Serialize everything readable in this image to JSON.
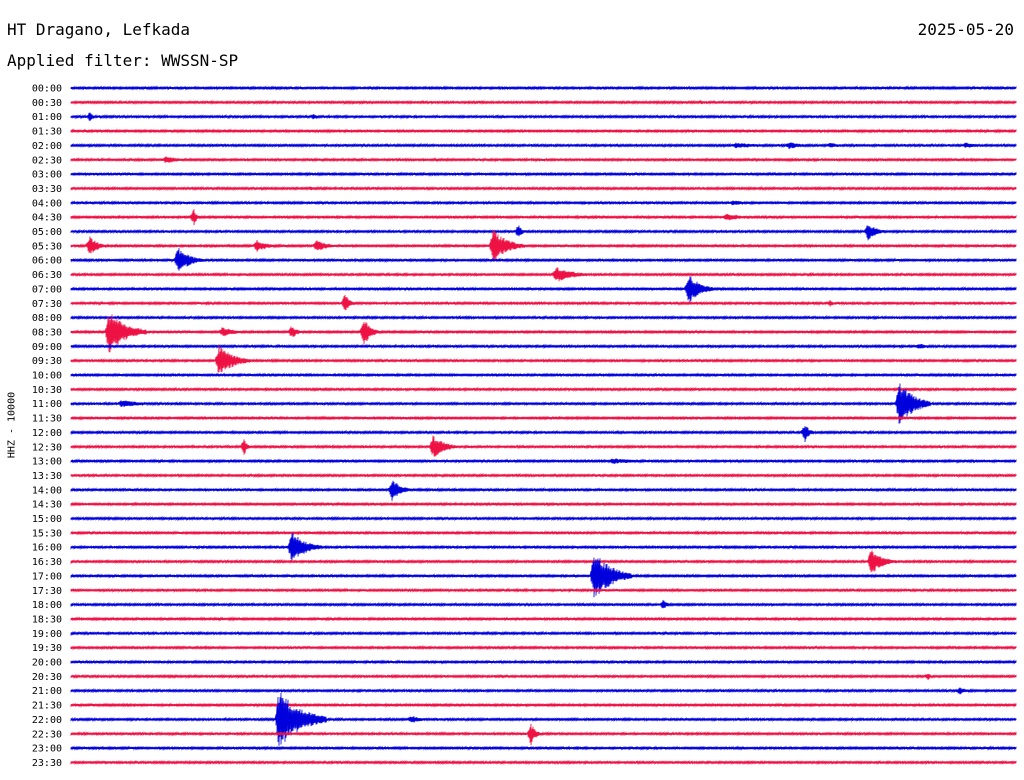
{
  "header": {
    "station": "HT Dragano, Lefkada",
    "date": "2025-05-20",
    "filter": "Applied filter: WWSSN-SP"
  },
  "chart_data": {
    "type": "line",
    "title": "HT Dragano, Lefkada",
    "subtitle": "Applied filter: WWSSN-SP",
    "ylabel": "HHZ - 10000",
    "time_labels": [
      "00:00",
      "00:30",
      "01:00",
      "01:30",
      "02:00",
      "02:30",
      "03:00",
      "03:30",
      "04:00",
      "04:30",
      "05:00",
      "05:30",
      "06:00",
      "06:30",
      "07:00",
      "07:30",
      "08:00",
      "08:30",
      "09:00",
      "09:30",
      "10:00",
      "10:30",
      "11:00",
      "11:30",
      "12:00",
      "12:30",
      "13:00",
      "13:30",
      "14:00",
      "14:30",
      "15:00",
      "15:30",
      "16:00",
      "16:30",
      "17:00",
      "17:30",
      "18:00",
      "18:30",
      "19:00",
      "19:30",
      "20:00",
      "20:30",
      "21:00",
      "21:30",
      "22:00",
      "22:30",
      "23:00",
      "23:30"
    ],
    "trace_colors": [
      "#0000dd",
      "#ee1144"
    ],
    "grid": false,
    "x_span_minutes": 30,
    "events": [
      {
        "trace": "00:30",
        "minute": 20.0,
        "amp": 2,
        "dur": 0.6
      },
      {
        "trace": "01:00",
        "minute": 0.6,
        "amp": 5,
        "dur": 0.2
      },
      {
        "trace": "01:00",
        "minute": 7.7,
        "amp": 3,
        "dur": 0.3
      },
      {
        "trace": "02:00",
        "minute": 21.1,
        "amp": 3,
        "dur": 2.0
      },
      {
        "trace": "02:00",
        "minute": 22.8,
        "amp": 4,
        "dur": 0.8
      },
      {
        "trace": "02:00",
        "minute": 24.1,
        "amp": 3,
        "dur": 0.8
      },
      {
        "trace": "02:00",
        "minute": 28.4,
        "amp": 3,
        "dur": 1.0
      },
      {
        "trace": "02:30",
        "minute": 3.0,
        "amp": 4,
        "dur": 1.0
      },
      {
        "trace": "03:30",
        "minute": 7.6,
        "amp": 2,
        "dur": 0.8
      },
      {
        "trace": "04:00",
        "minute": 21.0,
        "amp": 3,
        "dur": 1.0
      },
      {
        "trace": "04:30",
        "minute": 3.9,
        "amp": 9,
        "dur": 0.2
      },
      {
        "trace": "04:30",
        "minute": 20.8,
        "amp": 4,
        "dur": 1.2
      },
      {
        "trace": "05:00",
        "minute": 14.2,
        "amp": 7,
        "dur": 0.3
      },
      {
        "trace": "05:00",
        "minute": 25.3,
        "amp": 9,
        "dur": 0.6
      },
      {
        "trace": "05:30",
        "minute": 0.6,
        "amp": 11,
        "dur": 0.5
      },
      {
        "trace": "05:30",
        "minute": 5.9,
        "amp": 6,
        "dur": 0.8
      },
      {
        "trace": "05:30",
        "minute": 7.8,
        "amp": 6,
        "dur": 0.8
      },
      {
        "trace": "05:30",
        "minute": 13.4,
        "amp": 17,
        "dur": 1.0
      },
      {
        "trace": "06:00",
        "minute": 3.4,
        "amp": 14,
        "dur": 0.8
      },
      {
        "trace": "06:30",
        "minute": 15.4,
        "amp": 8,
        "dur": 1.2
      },
      {
        "trace": "07:00",
        "minute": 19.6,
        "amp": 16,
        "dur": 0.8
      },
      {
        "trace": "07:30",
        "minute": 8.7,
        "amp": 10,
        "dur": 0.3
      },
      {
        "trace": "07:30",
        "minute": 24.1,
        "amp": 4,
        "dur": 0.2
      },
      {
        "trace": "08:30",
        "minute": 1.2,
        "amp": 22,
        "dur": 1.2
      },
      {
        "trace": "08:30",
        "minute": 4.8,
        "amp": 5,
        "dur": 1.0
      },
      {
        "trace": "08:30",
        "minute": 7.0,
        "amp": 7,
        "dur": 0.4
      },
      {
        "trace": "08:30",
        "minute": 9.3,
        "amp": 14,
        "dur": 0.5
      },
      {
        "trace": "09:00",
        "minute": 26.9,
        "amp": 3,
        "dur": 0.8
      },
      {
        "trace": "09:30",
        "minute": 4.7,
        "amp": 16,
        "dur": 1.0
      },
      {
        "trace": "11:00",
        "minute": 1.6,
        "amp": 4,
        "dur": 1.5
      },
      {
        "trace": "11:00",
        "minute": 26.3,
        "amp": 24,
        "dur": 1.0
      },
      {
        "trace": "12:00",
        "minute": 23.3,
        "amp": 10,
        "dur": 0.3
      },
      {
        "trace": "12:30",
        "minute": 5.5,
        "amp": 9,
        "dur": 0.2
      },
      {
        "trace": "12:30",
        "minute": 11.5,
        "amp": 12,
        "dur": 0.8
      },
      {
        "trace": "13:00",
        "minute": 17.2,
        "amp": 3,
        "dur": 2.0
      },
      {
        "trace": "14:00",
        "minute": 10.2,
        "amp": 12,
        "dur": 0.6
      },
      {
        "trace": "16:00",
        "minute": 7.0,
        "amp": 16,
        "dur": 1.0
      },
      {
        "trace": "16:30",
        "minute": 25.4,
        "amp": 13,
        "dur": 0.8
      },
      {
        "trace": "17:00",
        "minute": 16.6,
        "amp": 26,
        "dur": 1.2
      },
      {
        "trace": "18:00",
        "minute": 18.8,
        "amp": 5,
        "dur": 0.3
      },
      {
        "trace": "21:00",
        "minute": 28.2,
        "amp": 4,
        "dur": 0.6
      },
      {
        "trace": "22:00",
        "minute": 6.6,
        "amp": 30,
        "dur": 1.5
      },
      {
        "trace": "22:00",
        "minute": 10.8,
        "amp": 4,
        "dur": 0.8
      },
      {
        "trace": "22:30",
        "minute": 14.6,
        "amp": 12,
        "dur": 0.3
      },
      {
        "trace": "20:30",
        "minute": 27.2,
        "amp": 4,
        "dur": 0.2
      }
    ]
  }
}
